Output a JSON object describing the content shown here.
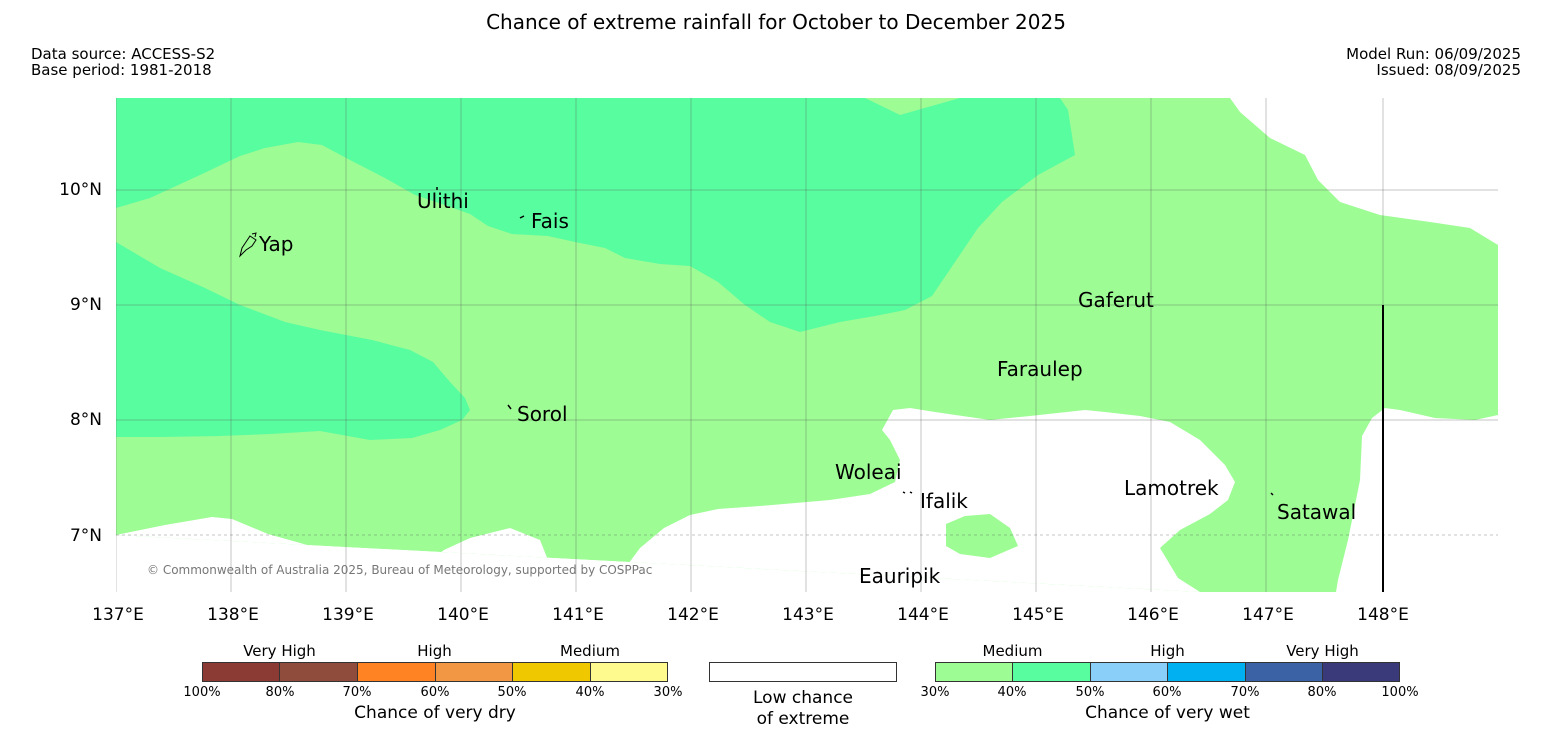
{
  "header": {
    "title": "Chance of extreme rainfall for October to December 2025",
    "data_source": "Data source: ACCESS-S2",
    "base_period": "Base period: 1981-2018",
    "model_run": "Model Run: 06/09/2025",
    "issued": "Issued: 08/09/2025"
  },
  "map": {
    "lon_labels": [
      "137°E",
      "138°E",
      "139°E",
      "140°E",
      "141°E",
      "142°E",
      "143°E",
      "144°E",
      "145°E",
      "146°E",
      "147°E",
      "148°E"
    ],
    "lat_labels": [
      "10°N",
      "9°N",
      "8°N",
      "7°N"
    ],
    "places": [
      {
        "name": "Yap"
      },
      {
        "name": "Ulithi"
      },
      {
        "name": "Fais"
      },
      {
        "name": "Gaferut"
      },
      {
        "name": "Faraulep"
      },
      {
        "name": "Sorol"
      },
      {
        "name": "Woleai"
      },
      {
        "name": "Ifalik"
      },
      {
        "name": "Lamotrek"
      },
      {
        "name": "Satawal"
      },
      {
        "name": "Eauripik"
      }
    ],
    "credit": "© Commonwealth of Australia 2025, Bureau of Meteorology, supported by COSPPac",
    "colors": {
      "wet_30_40": "#9dfc94",
      "wet_40_50": "#58fda0",
      "low": "#ffffff"
    }
  },
  "legend": {
    "dry": {
      "groups": [
        "Very High",
        "High",
        "Medium"
      ],
      "ticks": [
        "100%",
        "80%",
        "70%",
        "60%",
        "50%",
        "40%",
        "30%"
      ],
      "colors": [
        "#8b3a34",
        "#8f4c3d",
        "#ff8322",
        "#f29845",
        "#f0c800",
        "#fefa8e"
      ],
      "title": "Chance of very dry"
    },
    "low": {
      "title_line1": "Low chance",
      "title_line2": "of extreme",
      "color": "#ffffff"
    },
    "wet": {
      "groups": [
        "Medium",
        "High",
        "Very High"
      ],
      "ticks": [
        "30%",
        "40%",
        "50%",
        "60%",
        "70%",
        "80%",
        "100%"
      ],
      "colors": [
        "#9dfc94",
        "#58fda0",
        "#89cffa",
        "#00b0f0",
        "#3a62a5",
        "#3a3a7a"
      ],
      "title": "Chance of very wet"
    }
  }
}
